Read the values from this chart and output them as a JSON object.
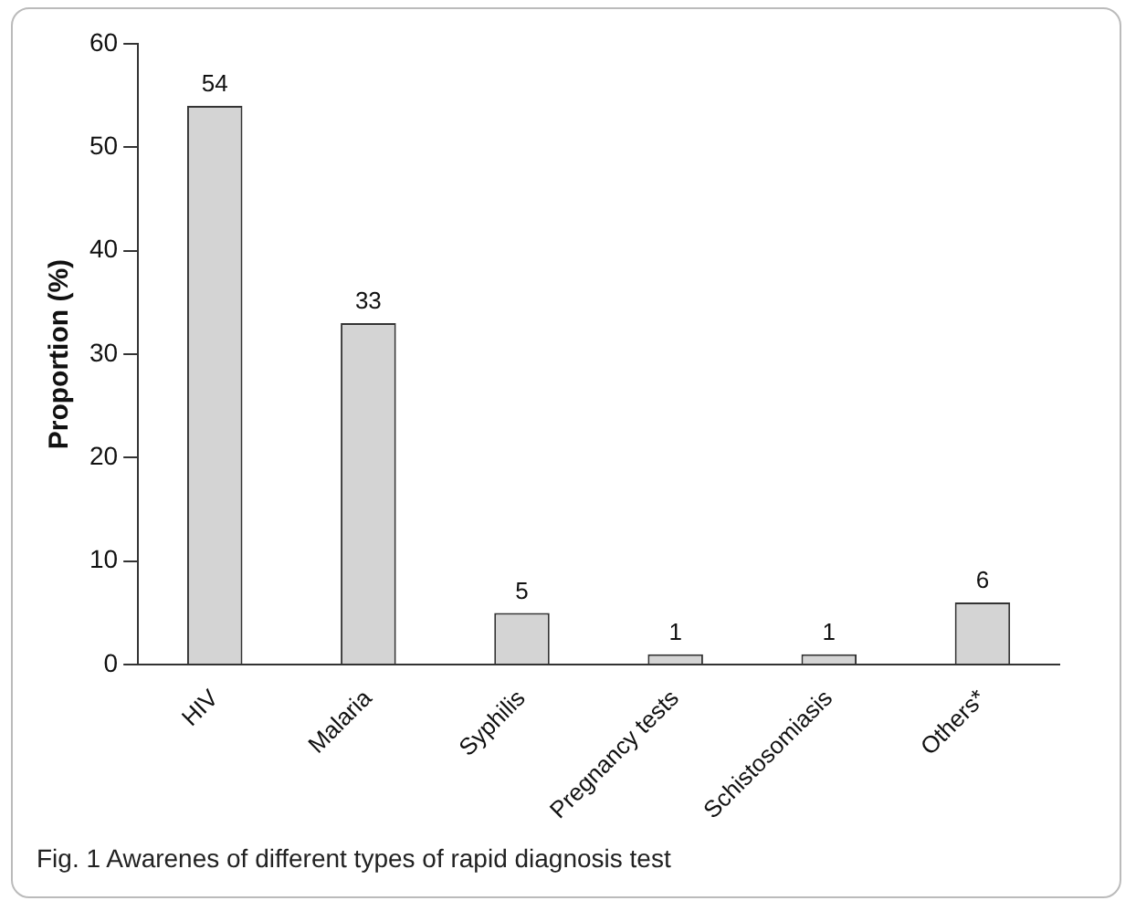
{
  "chart_data": {
    "type": "bar",
    "ylabel": "Proportion (%)",
    "categories": [
      "HIV",
      "Malaria",
      "Syphilis",
      "Pregnancy tests",
      "Schistosomiasis",
      "Others*"
    ],
    "values": [
      54,
      33,
      5,
      1,
      1,
      6
    ],
    "color": "#d4d4d4",
    "ylim": [
      0,
      60
    ],
    "yticks": [
      0,
      10,
      20,
      30,
      40,
      50,
      60
    ],
    "grid": false,
    "legend": false,
    "data_labels": true,
    "annotations": [
      "Fig. 1  Awarenes of different types of rapid diagnosis test"
    ]
  }
}
